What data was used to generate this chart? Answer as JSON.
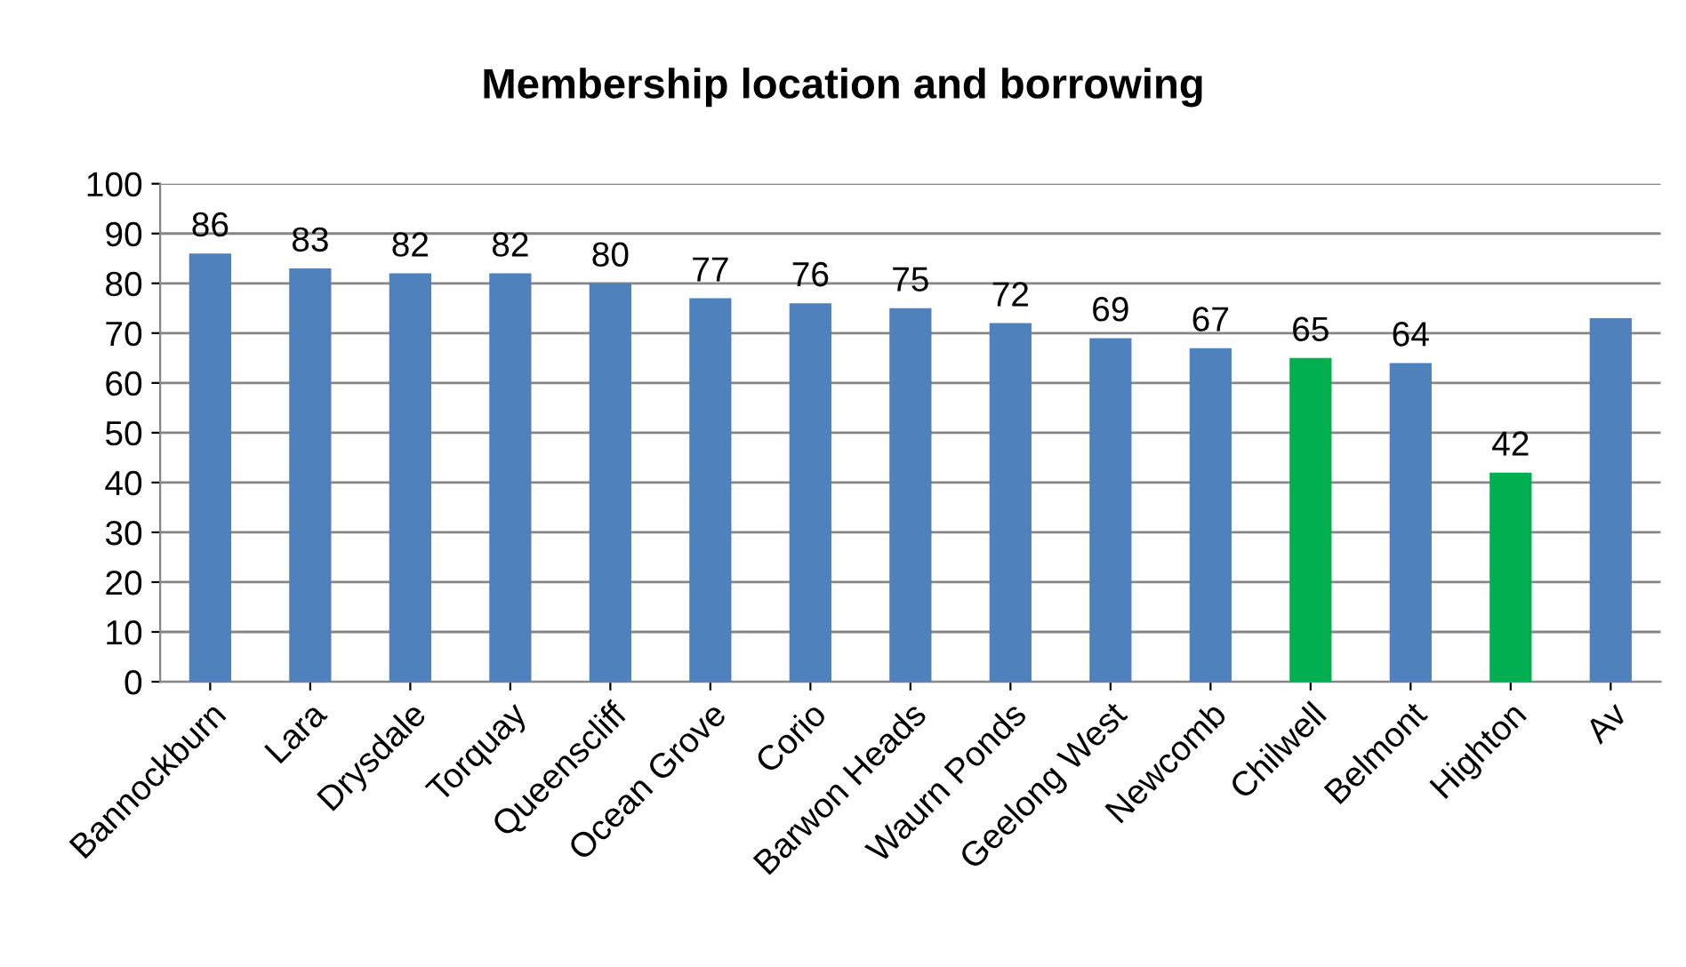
{
  "chart_data": {
    "type": "bar",
    "title": "Membership location and borrowing",
    "categories": [
      "Bannockburn",
      "Lara",
      "Drysdale",
      "Torquay",
      "Queenscliff",
      "Ocean Grove",
      "Corio",
      "Barwon Heads",
      "Waurn Ponds",
      "Geelong West",
      "Newcomb",
      "Chilwell",
      "Belmont",
      "Highton",
      "Av"
    ],
    "values": [
      86,
      83,
      82,
      82,
      80,
      77,
      76,
      75,
      72,
      69,
      67,
      65,
      64,
      42,
      73
    ],
    "colors": [
      "#4f81bd",
      "#4f81bd",
      "#4f81bd",
      "#4f81bd",
      "#4f81bd",
      "#4f81bd",
      "#4f81bd",
      "#4f81bd",
      "#4f81bd",
      "#4f81bd",
      "#4f81bd",
      "#00b050",
      "#4f81bd",
      "#00b050",
      "#4f81bd"
    ],
    "value_labels": [
      "86",
      "83",
      "82",
      "82",
      "80",
      "77",
      "76",
      "75",
      "72",
      "69",
      "67",
      "65",
      "64",
      "42",
      null
    ],
    "ylim": [
      0,
      100
    ],
    "yticks": [
      0,
      10,
      20,
      30,
      40,
      50,
      60,
      70,
      80,
      90,
      100
    ],
    "grid": "y"
  }
}
